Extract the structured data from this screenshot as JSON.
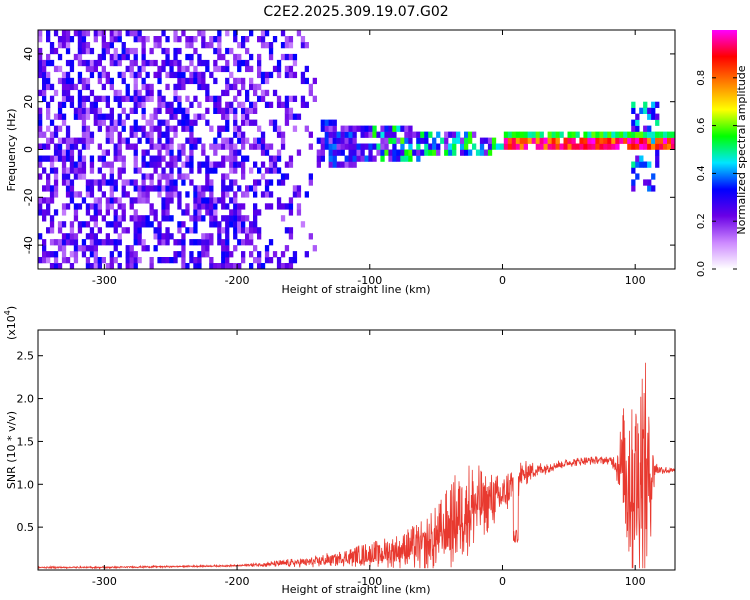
{
  "figure": {
    "title": "C2E2.2025.309.19.07.G02"
  },
  "chart_data": [
    {
      "type": "heatmap",
      "xlabel": "Height of straight line (km)",
      "ylabel": "Frequency (Hz)",
      "xlim": [
        -350,
        130
      ],
      "ylim": [
        -50,
        50
      ],
      "xticks": [
        -300,
        -200,
        -100,
        0,
        100
      ],
      "xtick_labels": [
        "-300",
        "-200",
        "-100",
        "0",
        "100"
      ],
      "yticks": [
        -40,
        -20,
        0,
        20,
        40
      ],
      "ytick_labels": [
        "-40",
        "-20",
        "0",
        "20",
        "40"
      ],
      "colorbar": {
        "label": "Normalized spectral amplitude",
        "range": [
          0,
          1
        ],
        "ticks": [
          0.0,
          0.2,
          0.4,
          0.6,
          0.8
        ],
        "tick_labels": [
          "0.0",
          "0.2",
          "0.4",
          "0.6",
          "0.8"
        ],
        "colors": [
          "#ffffff",
          "#cc88ff",
          "#6a00e6",
          "#0000ff",
          "#00e6ff",
          "#00ff00",
          "#ffff00",
          "#ff8000",
          "#ff0000",
          "#ff00ff"
        ]
      },
      "regions": [
        {
          "description": "noise",
          "x": [
            -350,
            -140
          ],
          "freq": [
            -50,
            50
          ],
          "amplitude": 0.12
        },
        {
          "description": "signal",
          "x": [
            -140,
            0
          ],
          "freq": [
            -8,
            10
          ],
          "amplitude": 0.35
        },
        {
          "description": "strong signal",
          "x": [
            0,
            130
          ],
          "freq": [
            0,
            3
          ],
          "amplitude": 0.95
        },
        {
          "description": "spike",
          "x": [
            95,
            115
          ],
          "freq": [
            -20,
            18
          ],
          "amplitude": 0.5
        }
      ],
      "grid": false
    },
    {
      "type": "line",
      "xlabel": "Height of straight line (km)",
      "ylabel": "SNR (10 * v/v)",
      "scale_label": "(x10",
      "scale_exponent": "4",
      "scale_close": ")",
      "xlim": [
        -350,
        130
      ],
      "ylim": [
        0,
        2.8
      ],
      "xticks": [
        -300,
        -200,
        -100,
        0,
        100
      ],
      "xtick_labels": [
        "-300",
        "-200",
        "-100",
        "0",
        "100"
      ],
      "yticks": [
        0.5,
        1.0,
        1.5,
        2.0,
        2.5
      ],
      "ytick_labels": [
        "0.5",
        "1.0",
        "1.5",
        "2.0",
        "2.5"
      ],
      "color": "#e8392f",
      "series": [
        {
          "x": [
            -350,
            -300,
            -250,
            -200,
            -160,
            -140,
            -120,
            -100,
            -80,
            -60,
            -50,
            -40,
            -30,
            -20,
            -10,
            0,
            5,
            10,
            20,
            30,
            40,
            50,
            60,
            70,
            80,
            85,
            90,
            95,
            100,
            105,
            110,
            115,
            120,
            130
          ],
          "y": [
            0.03,
            0.03,
            0.04,
            0.05,
            0.08,
            0.1,
            0.14,
            0.18,
            0.22,
            0.28,
            0.35,
            0.5,
            0.7,
            0.75,
            0.8,
            0.85,
            0.95,
            1.05,
            1.15,
            1.18,
            1.22,
            1.25,
            1.27,
            1.28,
            1.28,
            1.25,
            1.2,
            1.1,
            1.1,
            1.15,
            1.05,
            1.18,
            1.17,
            1.15
          ],
          "spread": [
            0.01,
            0.01,
            0.01,
            0.01,
            0.05,
            0.07,
            0.1,
            0.15,
            0.2,
            0.3,
            0.4,
            0.5,
            0.6,
            0.5,
            0.35,
            0.25,
            0.25,
            0.25,
            0.12,
            0.08,
            0.06,
            0.05,
            0.05,
            0.05,
            0.05,
            0.1,
            0.6,
            1.2,
            1.5,
            1.5,
            1.2,
            0.1,
            0.05,
            0.04
          ]
        }
      ],
      "grid": false
    }
  ]
}
